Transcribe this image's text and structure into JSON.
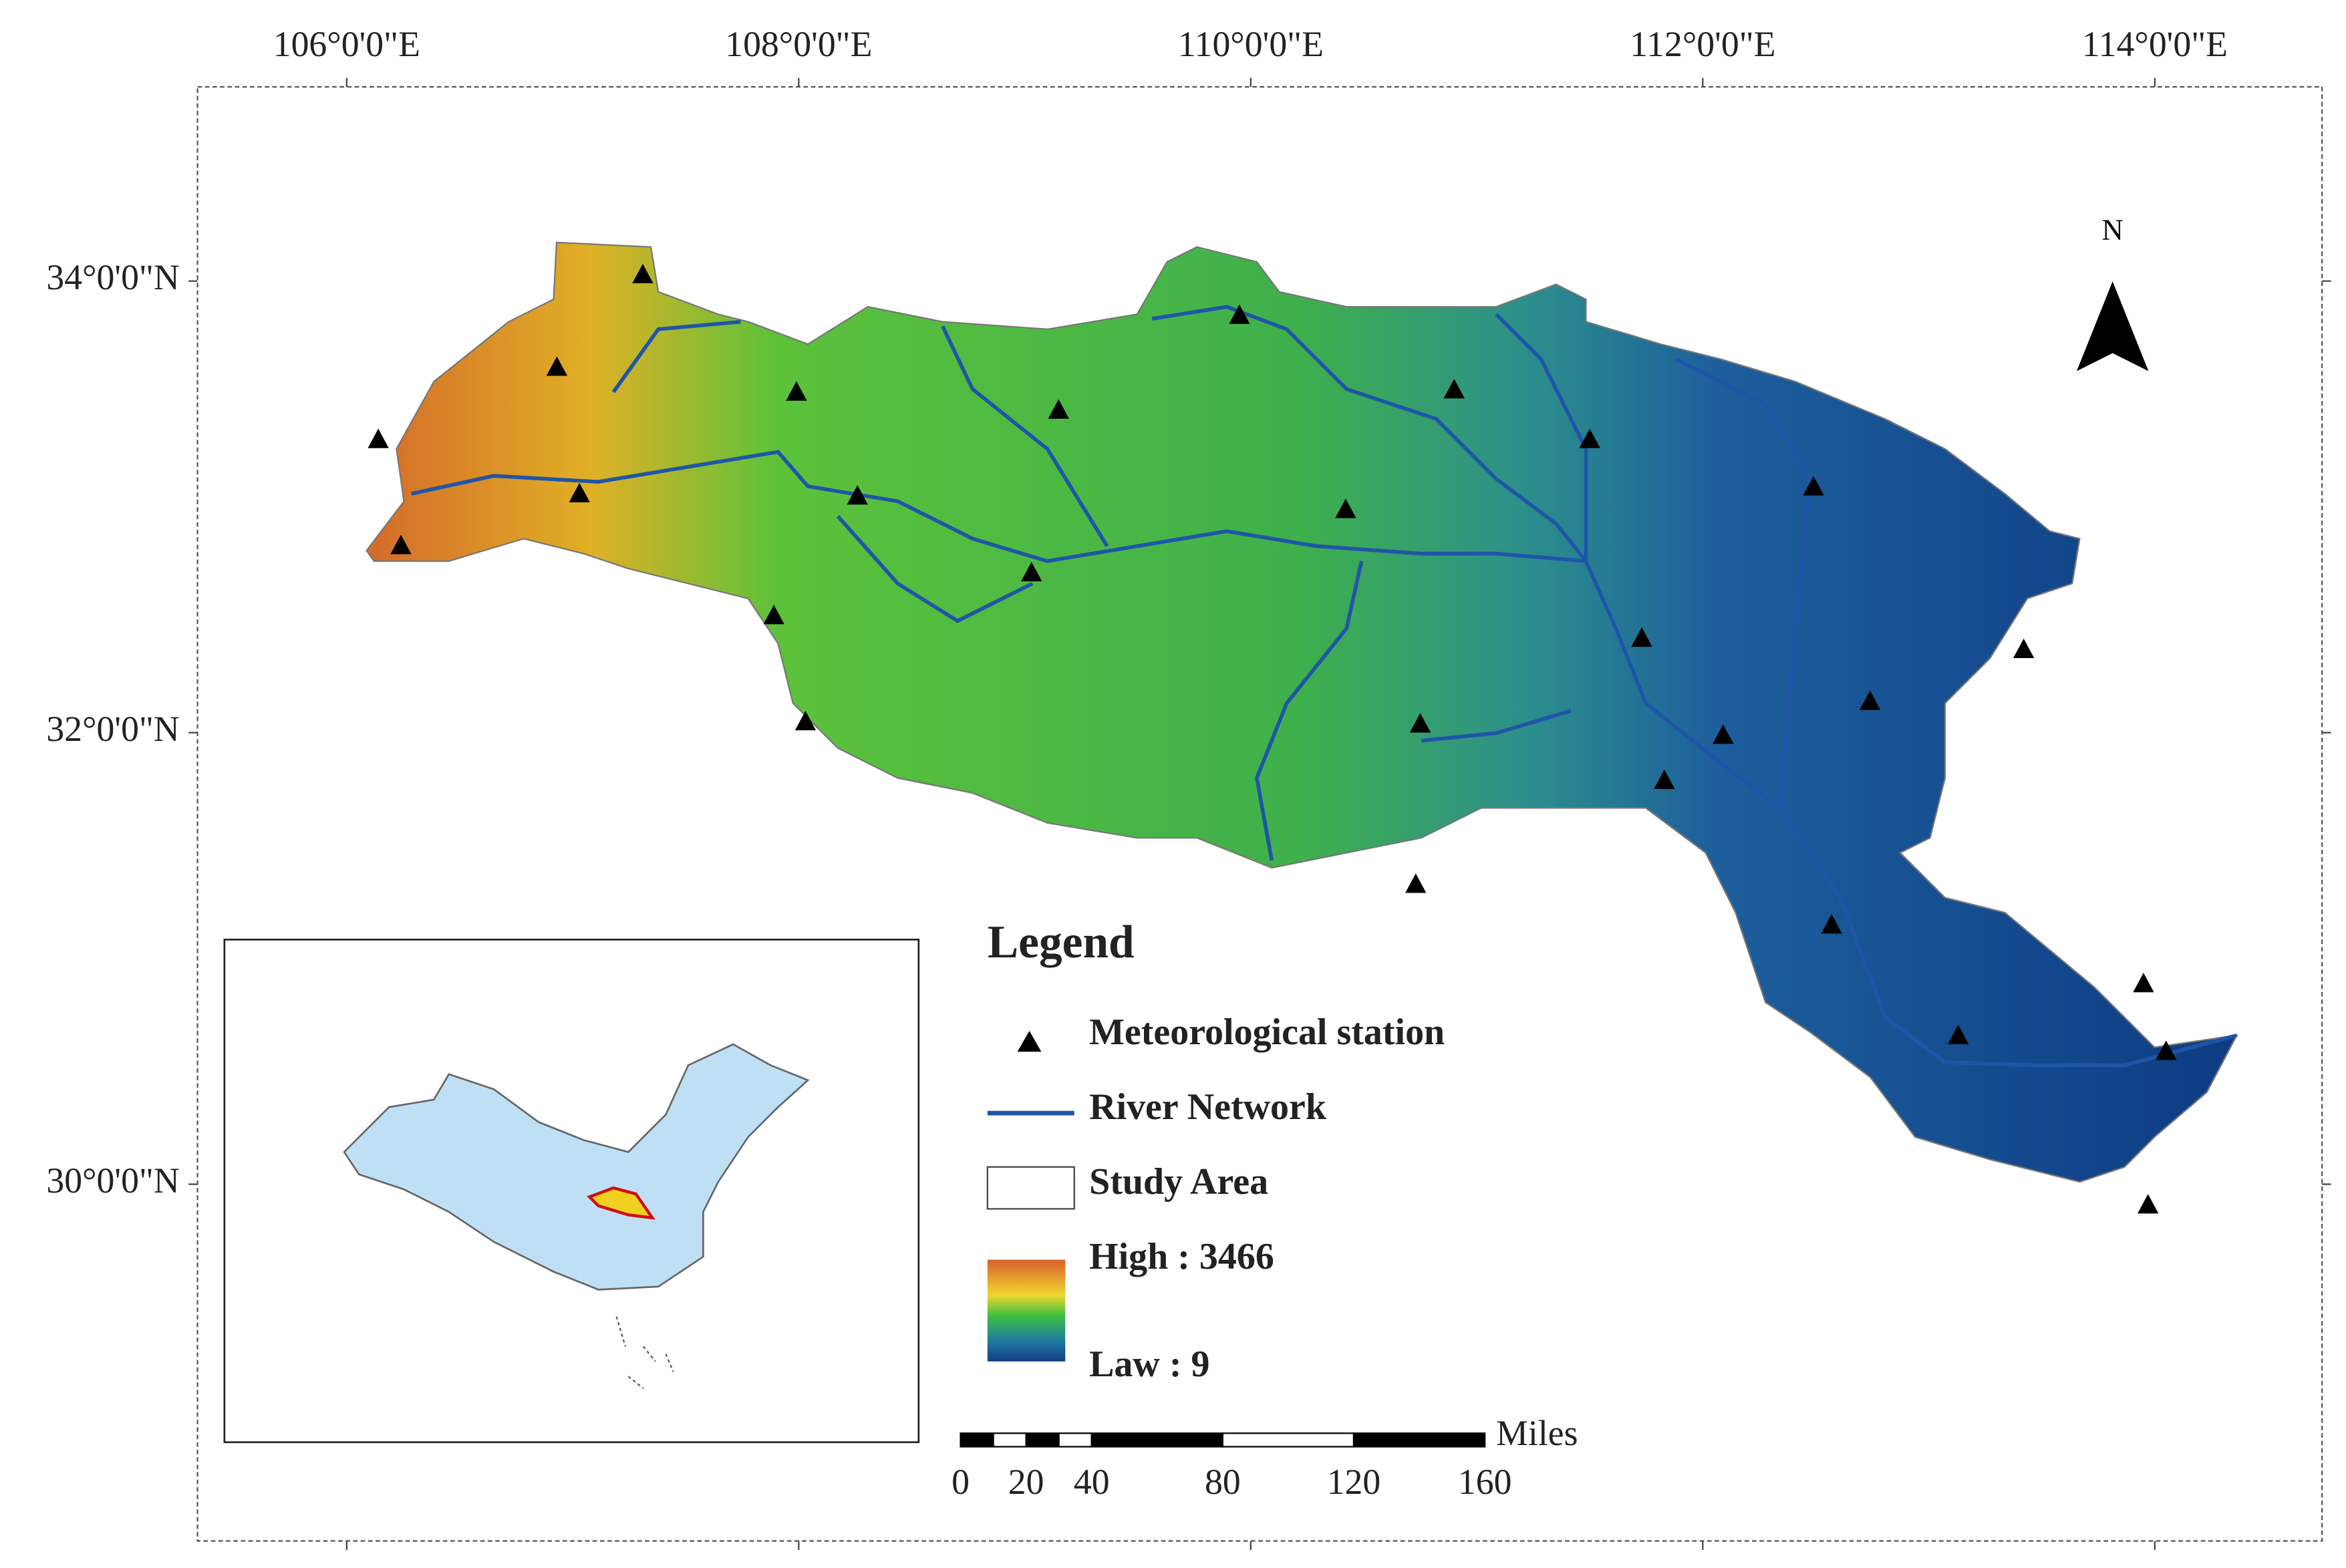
{
  "map": {
    "type": "map",
    "xlim": [
      105.34,
      114.74
    ],
    "ylim": [
      28.42,
      34.86
    ],
    "xticks": [
      {
        "value": 106,
        "label": "106°0'0\"E"
      },
      {
        "value": 108,
        "label": "108°0'0\"E"
      },
      {
        "value": 110,
        "label": "110°0'0\"E"
      },
      {
        "value": 112,
        "label": "112°0'0\"E"
      },
      {
        "value": 114,
        "label": "114°0'0\"E"
      }
    ],
    "yticks": [
      {
        "value": 30,
        "label": "30°0'0\"N"
      },
      {
        "value": 32,
        "label": "32°0'0\"N"
      },
      {
        "value": 34,
        "label": "34°0'0\"N"
      }
    ],
    "north": "N",
    "stations": {
      "lon": [
        106.14,
        106.24,
        106.93,
        107.31,
        107.03,
        107.99,
        108.26,
        107.89,
        108.03,
        109.15,
        109.03,
        109.95,
        110.42,
        110.9,
        111.5,
        112.49,
        111.73,
        110.75,
        112.09,
        111.83,
        112.74,
        113.42,
        110.73,
        112.57,
        113.13,
        113.95,
        114.05,
        113.97
      ],
      "lat": [
        33.3,
        32.83,
        33.62,
        34.03,
        33.06,
        33.51,
        33.05,
        32.52,
        32.05,
        33.43,
        32.71,
        33.85,
        32.99,
        33.52,
        33.3,
        33.09,
        32.42,
        32.04,
        31.99,
        31.79,
        32.14,
        32.37,
        31.33,
        31.15,
        30.66,
        30.89,
        30.59,
        29.91
      ]
    },
    "legend": {
      "title": "Legend",
      "station": "Meteorological station",
      "river": "River Network",
      "study_area": "Study Area",
      "high": "High : 3466",
      "low": "Law : 9"
    },
    "scale_bar": {
      "unit": "Miles",
      "ticks": [
        0,
        20,
        40,
        80,
        120,
        160
      ]
    }
  }
}
